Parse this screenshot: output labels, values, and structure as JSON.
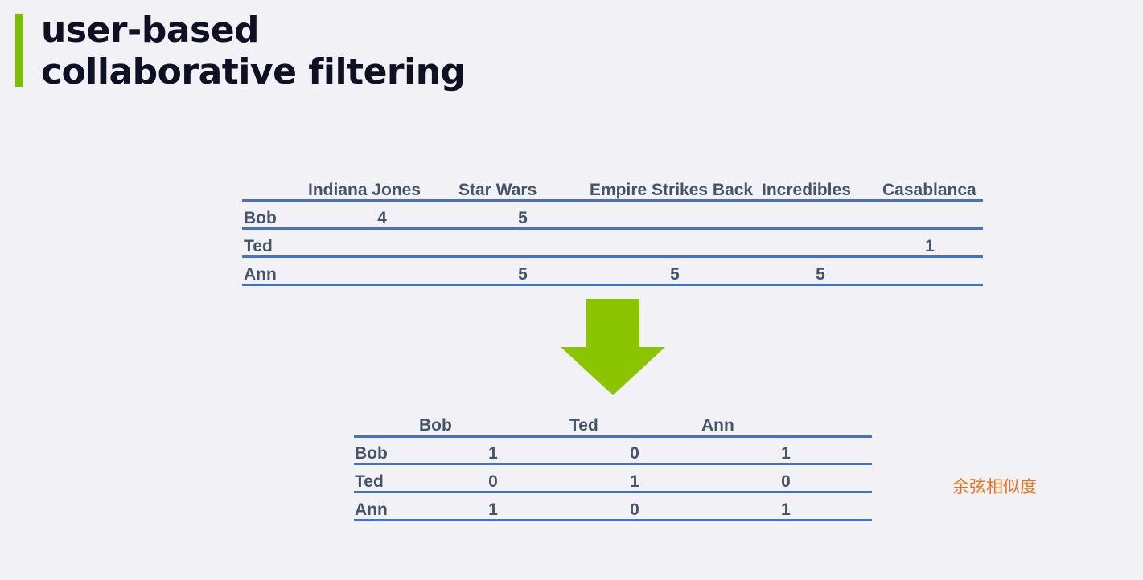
{
  "title": {
    "line1": "user-based",
    "line2": "collaborative filtering"
  },
  "ratings_table": {
    "columns": [
      "Indiana Jones",
      "Star Wars",
      "Empire Strikes Back",
      "Incredibles",
      "Casablanca"
    ],
    "rows": [
      {
        "user": "Bob",
        "cells": [
          "4",
          "5",
          "",
          "",
          ""
        ]
      },
      {
        "user": "Ted",
        "cells": [
          "",
          "",
          "",
          "",
          "1"
        ]
      },
      {
        "user": "Ann",
        "cells": [
          "",
          "5",
          "5",
          "5",
          ""
        ]
      }
    ]
  },
  "arrow": {
    "icon": "down-arrow-icon",
    "color": "#8bc400"
  },
  "similarity_table": {
    "columns": [
      "Bob",
      "Ted",
      "Ann"
    ],
    "rows": [
      {
        "user": "Bob",
        "cells": [
          "1",
          "0",
          "1"
        ]
      },
      {
        "user": "Ted",
        "cells": [
          "0",
          "1",
          "0"
        ]
      },
      {
        "user": "Ann",
        "cells": [
          "1",
          "0",
          "1"
        ]
      }
    ]
  },
  "note": "余弦相似度"
}
